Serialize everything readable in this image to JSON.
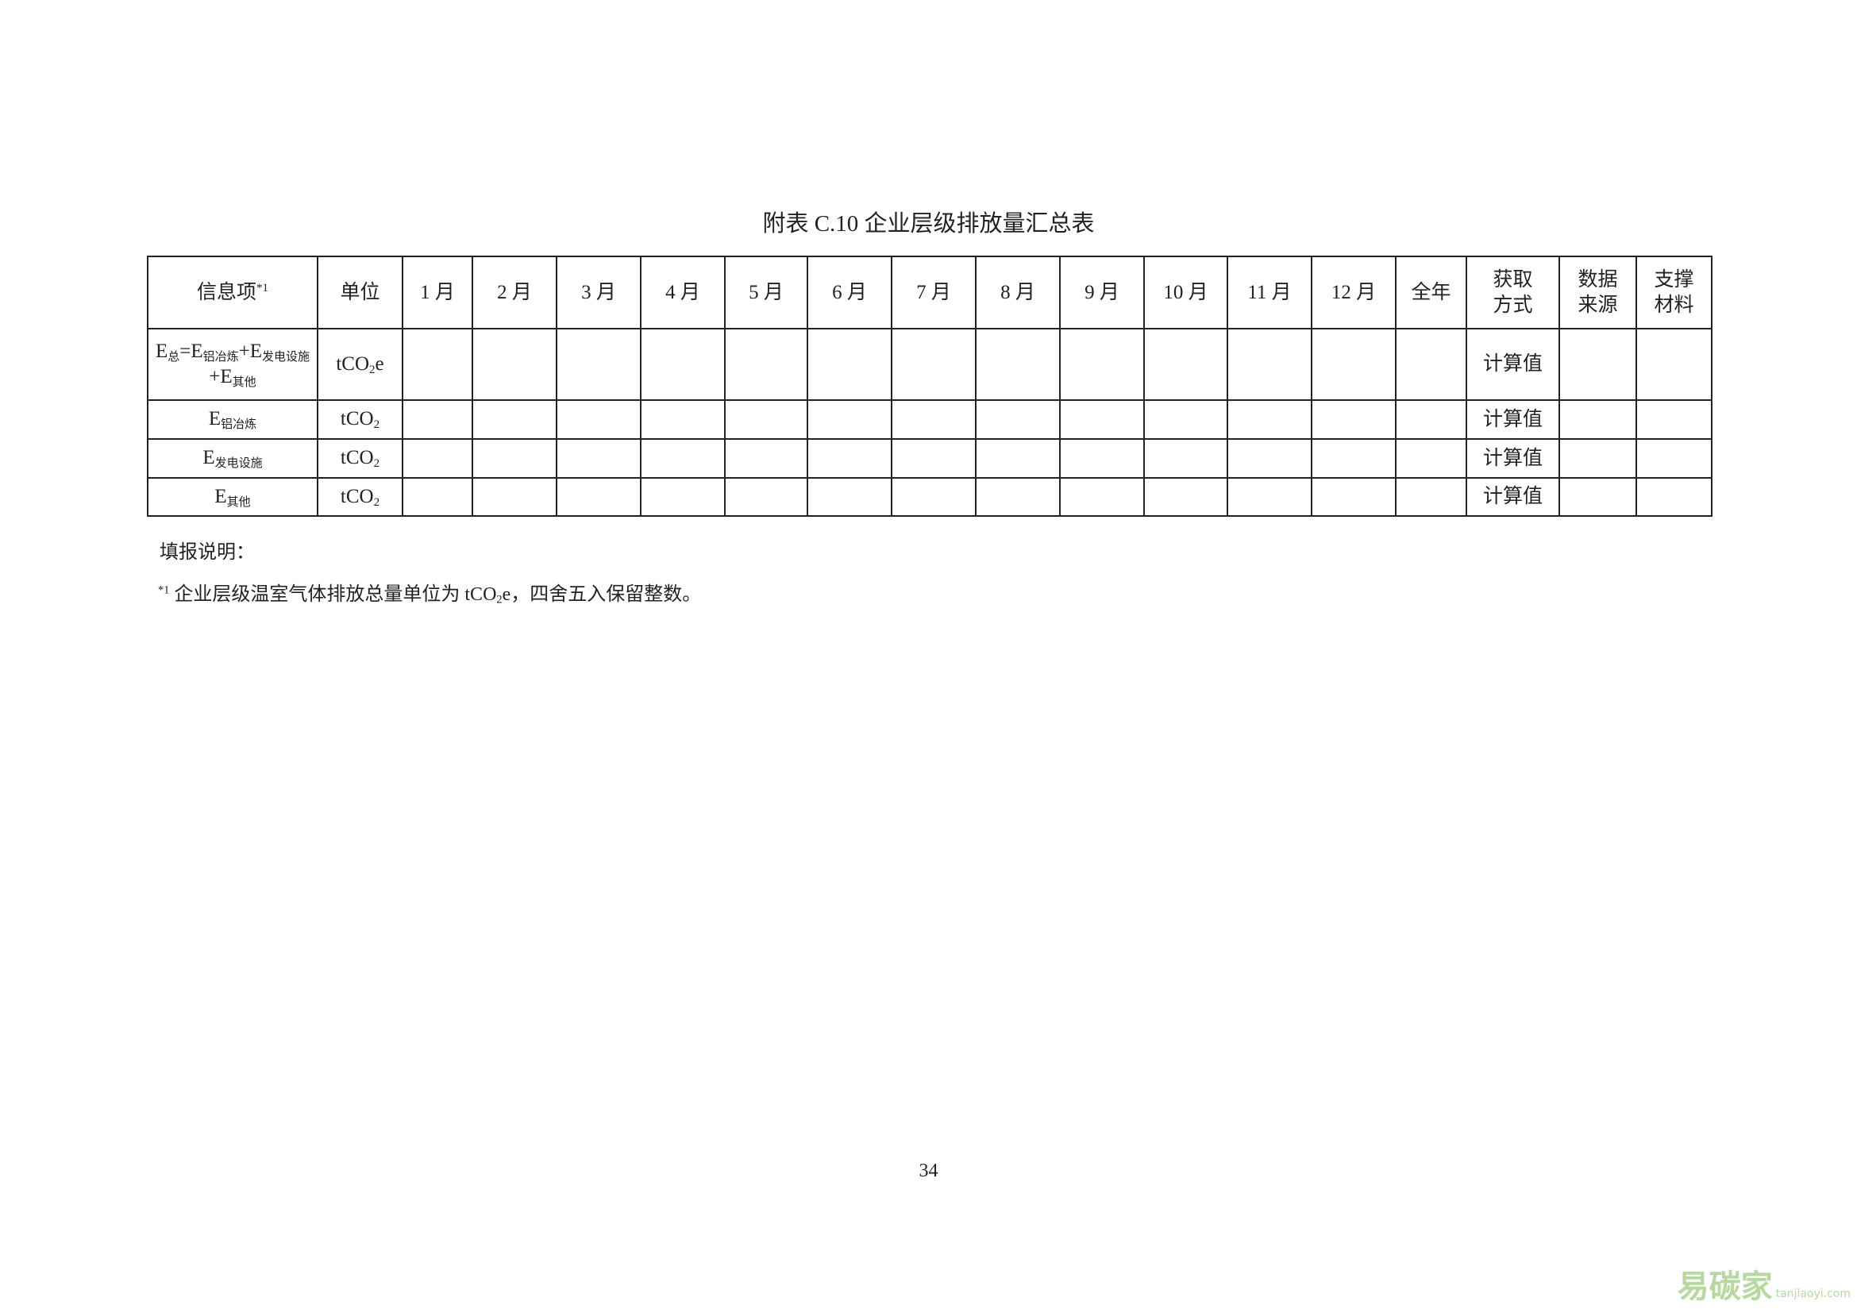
{
  "title": "附表 C.10  企业层级排放量汇总表",
  "table": {
    "header": [
      [
        {
          "text": "信息项"
        },
        {
          "text": "*1",
          "style": "sup"
        }
      ],
      "单位",
      "1 月",
      "2 月",
      "3 月",
      "4 月",
      "5 月",
      "6 月",
      "7 月",
      "8 月",
      "9 月",
      "10 月",
      "11 月",
      "12 月",
      "全年",
      [
        "获取",
        "方式"
      ],
      [
        "数据",
        "来源"
      ],
      [
        "支撑",
        "材料"
      ]
    ],
    "rows": [
      {
        "item": [
          [
            {
              "text": "E"
            },
            {
              "text": "总",
              "style": "sub"
            },
            {
              "text": "=E"
            },
            {
              "text": "铝冶炼",
              "style": "sub"
            },
            {
              "text": "+E"
            },
            {
              "text": "发电设施",
              "style": "sub"
            }
          ],
          [
            {
              "text": "+E"
            },
            {
              "text": "其他",
              "style": "sub"
            }
          ]
        ],
        "unit": [
          {
            "text": "tCO"
          },
          {
            "text": "2",
            "style": "sub"
          },
          {
            "text": "e"
          }
        ],
        "method": "计算值"
      },
      {
        "item": [
          [
            {
              "text": "E"
            },
            {
              "text": "铝冶炼",
              "style": "sub"
            }
          ]
        ],
        "unit": [
          {
            "text": "tCO"
          },
          {
            "text": "2",
            "style": "sub"
          }
        ],
        "method": "计算值"
      },
      {
        "item": [
          [
            {
              "text": "E"
            },
            {
              "text": "发电设施",
              "style": "sub"
            }
          ]
        ],
        "unit": [
          {
            "text": "tCO"
          },
          {
            "text": "2",
            "style": "sub"
          }
        ],
        "method": "计算值"
      },
      {
        "item": [
          [
            {
              "text": "E"
            },
            {
              "text": "其他",
              "style": "sub"
            }
          ]
        ],
        "unit": [
          {
            "text": "tCO"
          },
          {
            "text": "2",
            "style": "sub"
          }
        ],
        "method": "计算值"
      }
    ]
  },
  "notes": {
    "heading": "填报说明：",
    "footnote": [
      {
        "text": "*1",
        "style": "sup"
      },
      {
        "text": " 企业层级温室气体排放总量单位为 tCO"
      },
      {
        "text": "2",
        "style": "sub"
      },
      {
        "text": "e，四舍五入保留整数。"
      }
    ]
  },
  "page_number": "34",
  "watermark": {
    "name": "易碳家",
    "site": "tanjiaoyi.com"
  }
}
